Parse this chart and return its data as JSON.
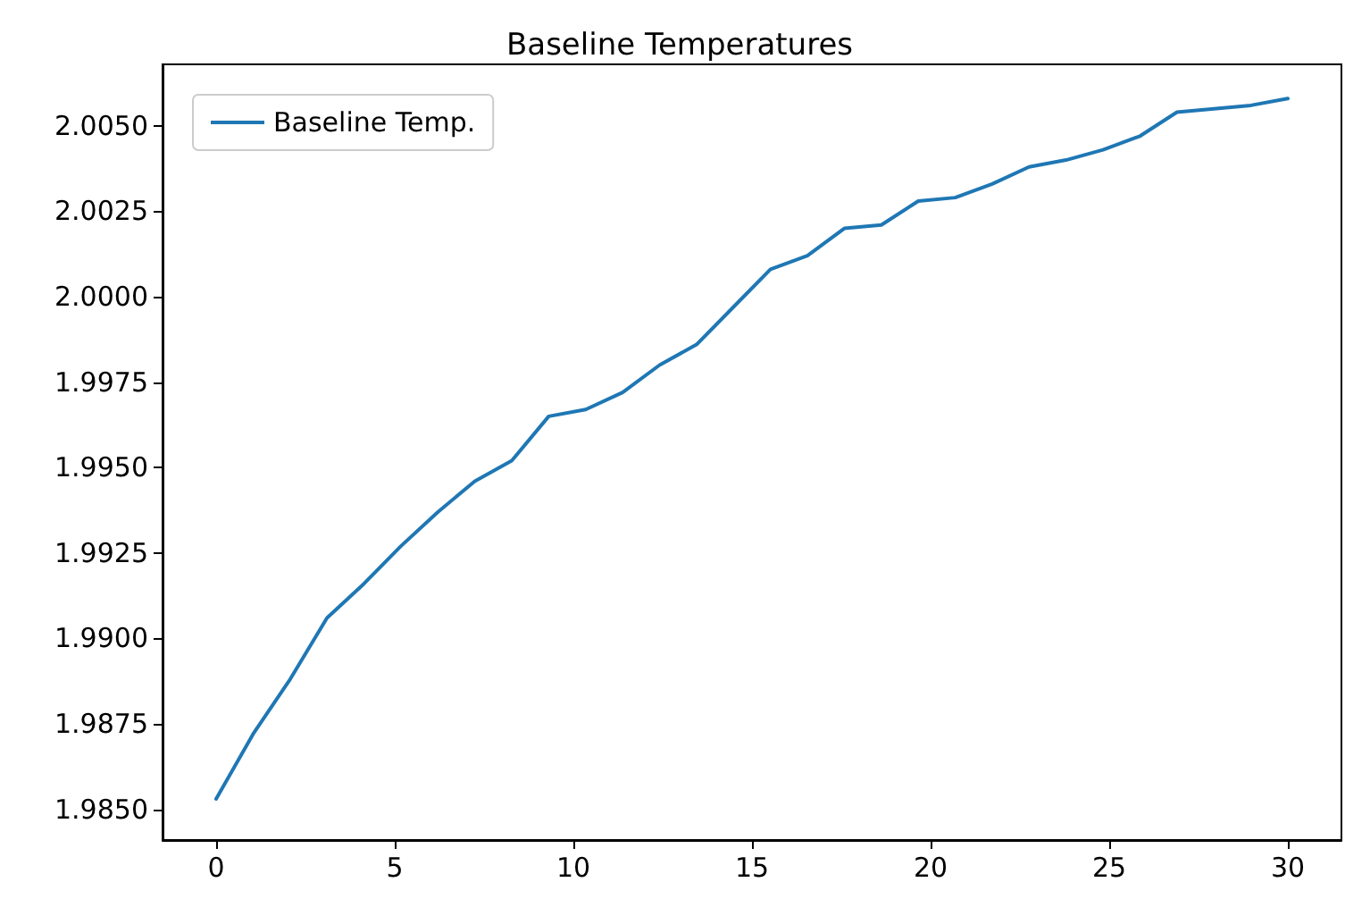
{
  "chart_data": {
    "type": "line",
    "title": "Baseline Temperatures",
    "x": [
      0,
      1.0345,
      2.069,
      3.1034,
      4.1379,
      5.1724,
      6.2069,
      7.2414,
      8.2759,
      9.3103,
      10.3448,
      11.3793,
      12.4138,
      13.4483,
      14.4828,
      15.5172,
      16.5517,
      17.5862,
      18.6207,
      19.6552,
      20.6897,
      21.7241,
      22.7586,
      23.7931,
      24.8276,
      25.8621,
      26.8966,
      27.931,
      28.9655,
      30
    ],
    "series": [
      {
        "name": "Baseline Temp.",
        "color": "#1f77b4",
        "values": [
          1.9853,
          1.9872,
          1.9888,
          1.9906,
          1.9916,
          1.9927,
          1.9937,
          1.9946,
          1.9952,
          1.9965,
          1.9967,
          1.9972,
          1.998,
          1.9986,
          1.9997,
          2.0008,
          2.0012,
          2.002,
          2.0021,
          2.0028,
          2.0029,
          2.0033,
          2.0038,
          2.004,
          2.0043,
          2.0047,
          2.0054,
          2.0055,
          2.0056,
          2.0058
        ]
      }
    ],
    "xlim": [
      -1.5,
      31.5
    ],
    "xticks": [
      0,
      5,
      10,
      15,
      20,
      25,
      30
    ],
    "ylim": [
      1.9841,
      2.0068
    ],
    "yticks": [
      {
        "value": 1.985,
        "label": "1.9850"
      },
      {
        "value": 1.9875,
        "label": "1.9875"
      },
      {
        "value": 1.99,
        "label": "1.9900"
      },
      {
        "value": 1.9925,
        "label": "1.9925"
      },
      {
        "value": 1.995,
        "label": "1.9950"
      },
      {
        "value": 1.9975,
        "label": "1.9975"
      },
      {
        "value": 2.0,
        "label": "2.0000"
      },
      {
        "value": 2.0025,
        "label": "2.0025"
      },
      {
        "value": 2.005,
        "label": "2.0050"
      }
    ],
    "legend": "top left",
    "grid": false,
    "marker": "none",
    "line_style": "solid"
  }
}
